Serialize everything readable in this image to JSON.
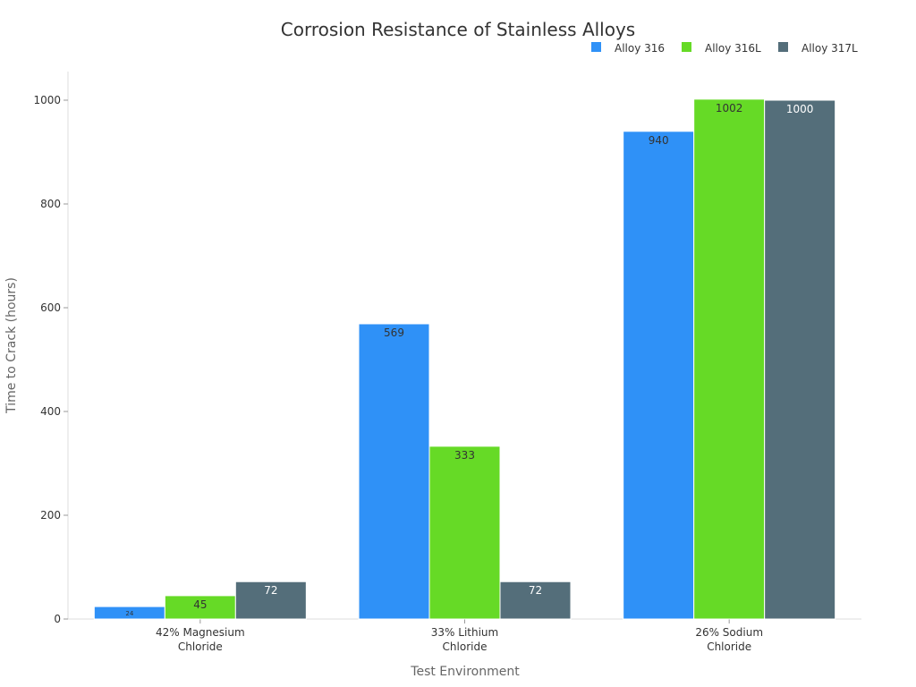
{
  "chart_data": {
    "type": "bar",
    "title": "Corrosion Resistance of Stainless Alloys",
    "xlabel": "Test Environment",
    "ylabel": "Time to Crack (hours)",
    "categories": [
      [
        "42% Magnesium",
        "Chloride"
      ],
      [
        "33% Lithium",
        "Chloride"
      ],
      [
        "26% Sodium",
        "Chloride"
      ]
    ],
    "series": [
      {
        "name": "Alloy 316",
        "color": "#2f91f7",
        "label_color": "#333333",
        "values": [
          24,
          569,
          940
        ]
      },
      {
        "name": "Alloy 316L",
        "color": "#66da26",
        "label_color": "#333333",
        "values": [
          45,
          333,
          1002
        ]
      },
      {
        "name": "Alloy 317L",
        "color": "#546e7a",
        "label_color": "#ffffff",
        "values": [
          72,
          72,
          1000
        ]
      }
    ],
    "ylim": [
      0,
      1050
    ],
    "yticks": [
      0,
      200,
      400,
      600,
      800,
      1000
    ],
    "grid": false,
    "legend": "top-right"
  }
}
